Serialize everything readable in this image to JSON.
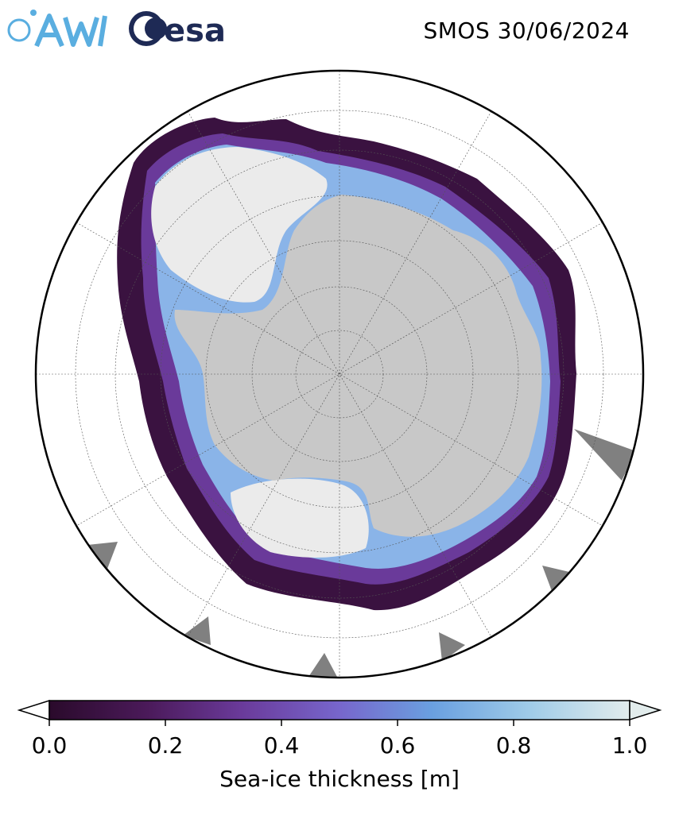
{
  "title": "SMOS 30/06/2024",
  "logos": {
    "left": "AWI",
    "right": "esa"
  },
  "colorbar": {
    "label": "Sea-ice thickness [m]",
    "min": 0.0,
    "max": 1.0,
    "ticks": [
      "0.0",
      "0.2",
      "0.4",
      "0.6",
      "0.8",
      "1.0"
    ],
    "extend": "both",
    "colors": [
      "#2a0a2b",
      "#4b1a5a",
      "#6a3a9a",
      "#7766cc",
      "#6aa0e0",
      "#a0cce8",
      "#e2ecec"
    ]
  },
  "map": {
    "projection": "south-polar-stereographic",
    "land_color": "#c8c8c8",
    "fast_ice_color": "#ebebeb",
    "nodata_color": "#808080",
    "graticule": "on"
  }
}
